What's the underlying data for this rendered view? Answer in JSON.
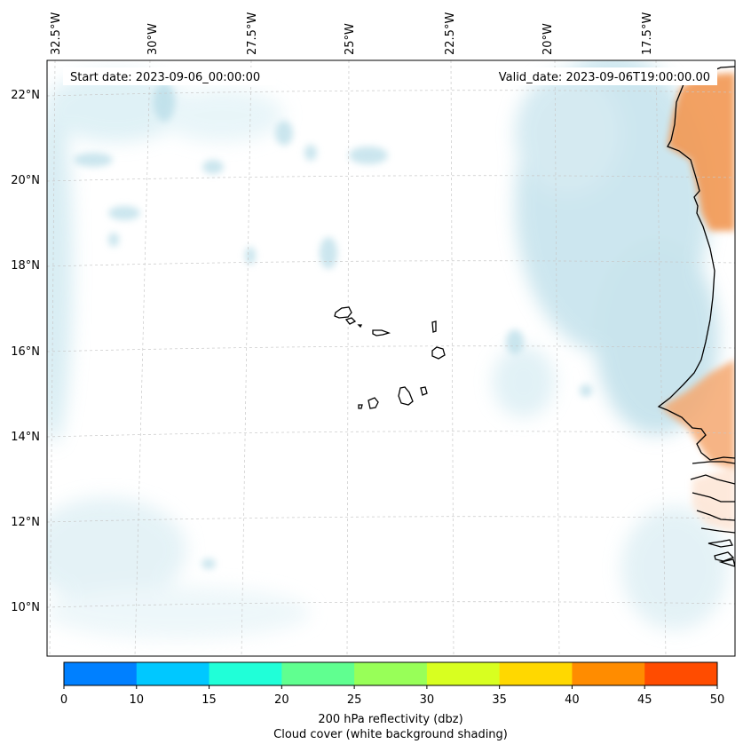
{
  "map": {
    "start_label": "Start date: 2023-09-06_00:00:00",
    "valid_label": "Valid_date: 2023-09-06T19:00:00.00",
    "lon_labels": [
      "32.5°W",
      "30°W",
      "27.5°W",
      "25°W",
      "22.5°W",
      "20°W",
      "17.5°W"
    ],
    "lat_labels": [
      "22°N",
      "20°N",
      "18°N",
      "16°N",
      "14°N",
      "12°N",
      "10°N"
    ]
  },
  "colorbar": {
    "ticks": [
      "0",
      "10",
      "15",
      "20",
      "25",
      "30",
      "35",
      "40",
      "45",
      "50"
    ],
    "colors": [
      "#0080ff",
      "#00c8ff",
      "#20ffd8",
      "#60ff90",
      "#98ff58",
      "#d8ff20",
      "#ffd800",
      "#ff8c00",
      "#ff4c00"
    ],
    "label_line1": "200 hPa reflectivity (dbz)",
    "label_line2": "Cloud cover (white background shading)"
  },
  "colors": {
    "cloud": "#a9d6e4",
    "land_shading": "#f29a57"
  }
}
